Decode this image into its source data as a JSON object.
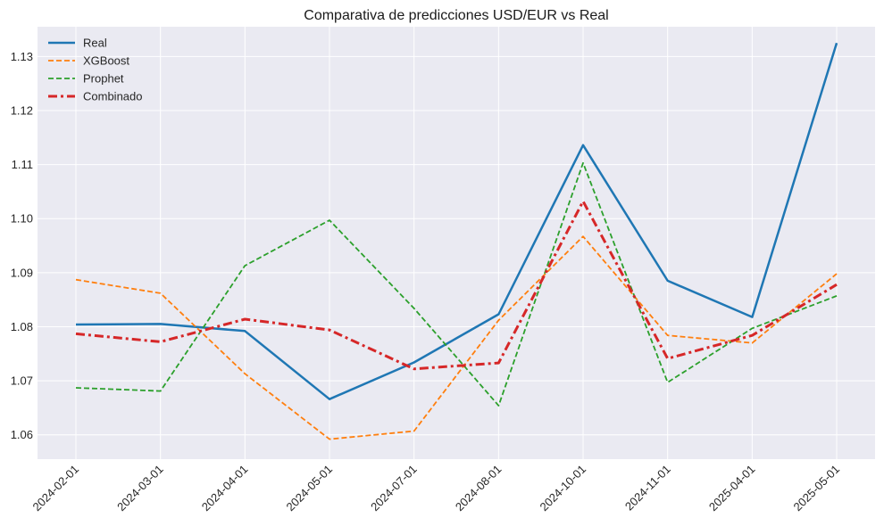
{
  "chart_data": {
    "type": "line",
    "title": "Comparativa de predicciones USD/EUR vs Real",
    "xlabel": "",
    "ylabel": "",
    "x": [
      "2024-02-01",
      "2024-03-01",
      "2024-04-01",
      "2024-05-01",
      "2024-07-01",
      "2024-08-01",
      "2024-10-01",
      "2024-11-01",
      "2025-04-01",
      "2025-05-01"
    ],
    "yticks": [
      "1.06",
      "1.07",
      "1.08",
      "1.09",
      "1.10",
      "1.11",
      "1.12",
      "1.13"
    ],
    "ylim": [
      1.0555,
      1.1355
    ],
    "grid": true,
    "legend_position": "top-left",
    "series": [
      {
        "name": "Real",
        "color": "#1f77b4",
        "style": "solid",
        "values": [
          1.0804,
          1.0805,
          1.0792,
          1.0666,
          1.0734,
          1.0823,
          1.1136,
          1.0885,
          1.0818,
          1.1325
        ]
      },
      {
        "name": "XGBoost",
        "color": "#ff7f0e",
        "style": "dashed",
        "values": [
          1.0887,
          1.0862,
          1.0713,
          1.0592,
          1.0607,
          1.0812,
          1.0967,
          1.0784,
          1.077,
          1.0898
        ]
      },
      {
        "name": "Prophet",
        "color": "#2ca02c",
        "style": "dashed",
        "values": [
          1.0687,
          1.0681,
          1.0913,
          1.0997,
          1.0834,
          1.0654,
          1.1103,
          1.0697,
          1.0797,
          1.0857
        ]
      },
      {
        "name": "Combinado",
        "color": "#d62728",
        "style": "dashdot",
        "values": [
          1.0787,
          1.0772,
          1.0814,
          1.0794,
          1.0722,
          1.0733,
          1.1032,
          1.0741,
          1.0784,
          1.0878
        ]
      }
    ]
  }
}
